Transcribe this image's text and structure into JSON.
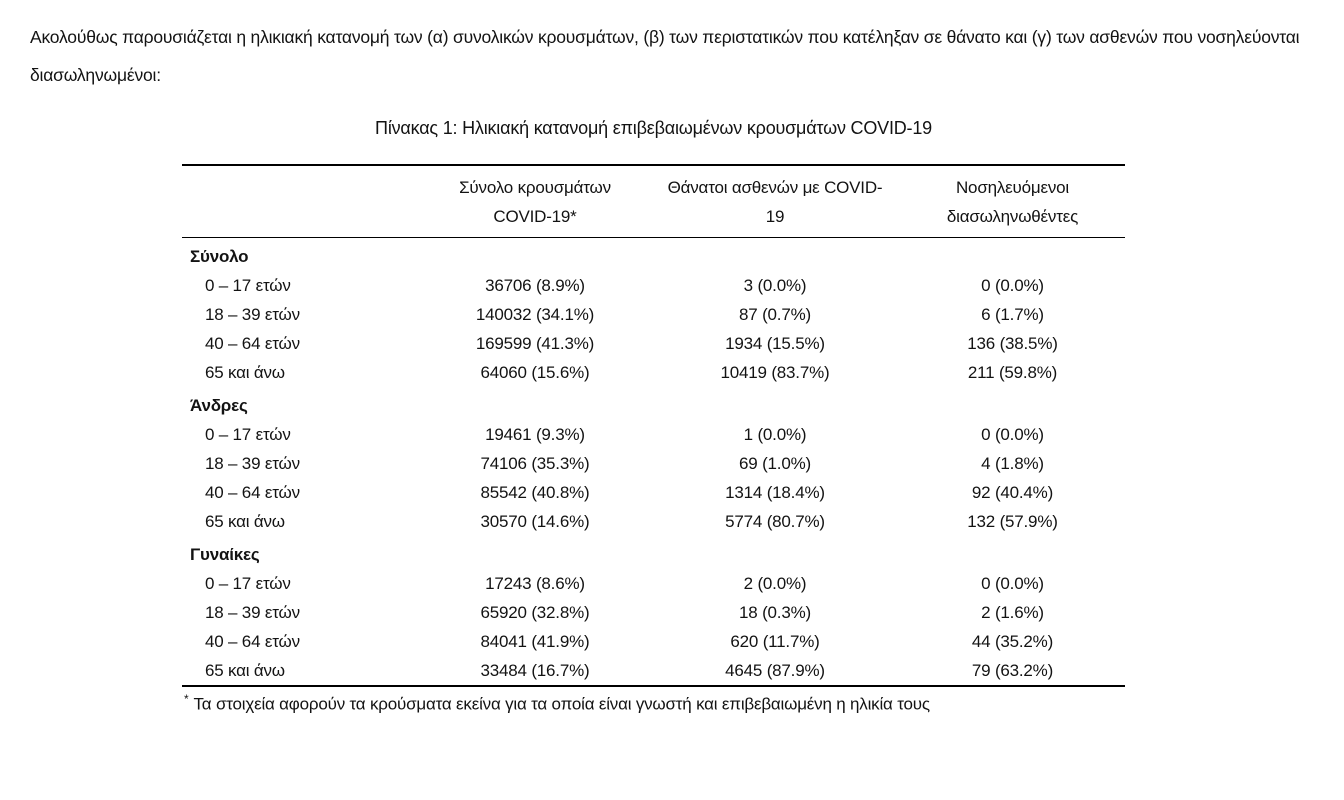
{
  "intro_text": "Ακολούθως παρουσιάζεται η ηλικιακή κατανομή των (α) συνολικών κρουσμάτων, (β) των περιστατικών που κατέληξαν σε θάνατο και (γ) των ασθενών που νοσηλεύονται διασωληνωμένοι:",
  "table": {
    "title": "Πίνακας 1: Ηλικιακή κατανομή επιβεβαιωμένων κρουσμάτων COVID-19",
    "columns": [
      "Σύνολο κρουσμάτων COVID-19*",
      "Θάνατοι ασθενών με COVID-19",
      "Νοσηλευόμενοι διασωληνωθέντες"
    ],
    "sections": [
      {
        "label": "Σύνολο",
        "rows": [
          {
            "label": "0 – 17 ετών",
            "cells": [
              "36706 (8.9%)",
              "3 (0.0%)",
              "0 (0.0%)"
            ]
          },
          {
            "label": "18 – 39 ετών",
            "cells": [
              "140032 (34.1%)",
              "87 (0.7%)",
              "6 (1.7%)"
            ]
          },
          {
            "label": "40 – 64 ετών",
            "cells": [
              "169599 (41.3%)",
              "1934 (15.5%)",
              "136 (38.5%)"
            ]
          },
          {
            "label": "65 και άνω",
            "cells": [
              "64060 (15.6%)",
              "10419 (83.7%)",
              "211 (59.8%)"
            ]
          }
        ]
      },
      {
        "label": "Άνδρες",
        "rows": [
          {
            "label": "0 – 17 ετών",
            "cells": [
              "19461 (9.3%)",
              "1 (0.0%)",
              "0 (0.0%)"
            ]
          },
          {
            "label": "18 – 39 ετών",
            "cells": [
              "74106 (35.3%)",
              "69 (1.0%)",
              "4 (1.8%)"
            ]
          },
          {
            "label": "40 – 64 ετών",
            "cells": [
              "85542 (40.8%)",
              "1314 (18.4%)",
              "92 (40.4%)"
            ]
          },
          {
            "label": "65 και άνω",
            "cells": [
              "30570 (14.6%)",
              "5774 (80.7%)",
              "132 (57.9%)"
            ]
          }
        ]
      },
      {
        "label": "Γυναίκες",
        "rows": [
          {
            "label": "0 – 17 ετών",
            "cells": [
              "17243 (8.6%)",
              "2 (0.0%)",
              "0 (0.0%)"
            ]
          },
          {
            "label": "18 – 39 ετών",
            "cells": [
              "65920 (32.8%)",
              "18 (0.3%)",
              "2 (1.6%)"
            ]
          },
          {
            "label": "40 – 64 ετών",
            "cells": [
              "84041 (41.9%)",
              "620 (11.7%)",
              "44 (35.2%)"
            ]
          },
          {
            "label": "65 και άνω",
            "cells": [
              "33484 (16.7%)",
              "4645 (87.9%)",
              "79 (63.2%)"
            ]
          }
        ]
      }
    ],
    "footnote_marker": "*",
    "footnote_text": "Τα στοιχεία αφορούν τα κρούσματα εκείνα για τα οποία είναι γνωστή και επιβεβαιωμένη η ηλικία τους"
  }
}
